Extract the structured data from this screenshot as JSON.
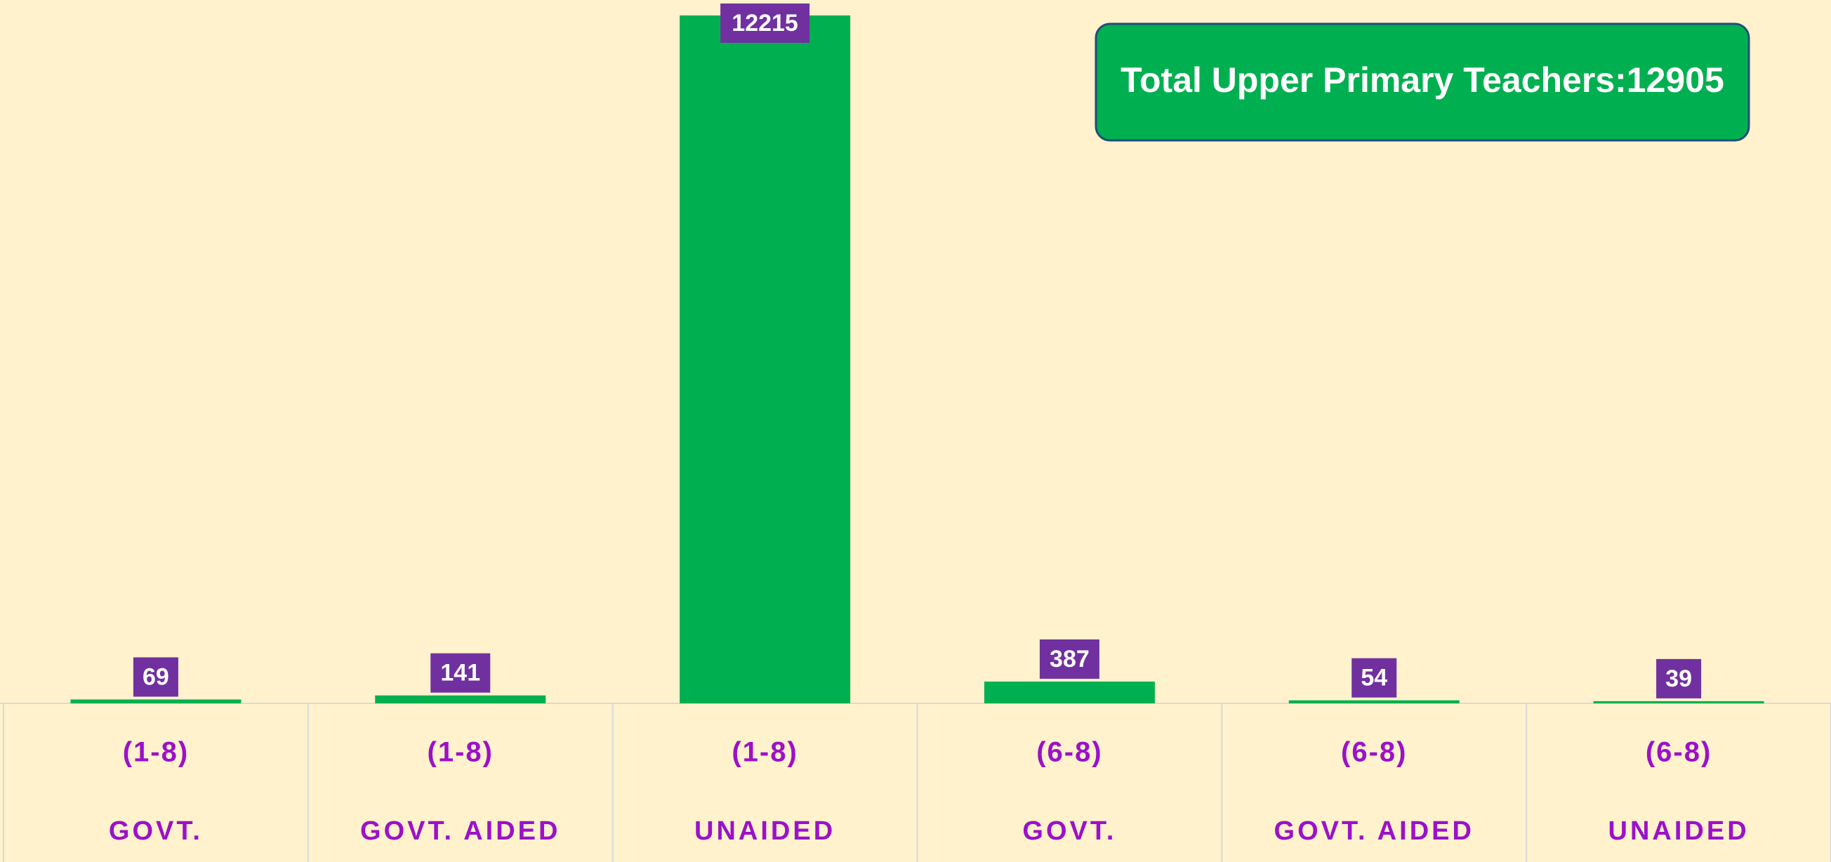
{
  "chart_data": {
    "type": "bar",
    "title": "Total Upper Primary Teachers:12905",
    "categories": [
      [
        "(1-8)",
        "GOVT."
      ],
      [
        "(1-8)",
        "GOVT. AIDED"
      ],
      [
        "(1-8)",
        "UNAIDED"
      ],
      [
        "(6-8)",
        "GOVT."
      ],
      [
        "(6-8)",
        "GOVT. AIDED"
      ],
      [
        "(6-8)",
        "UNAIDED"
      ]
    ],
    "values": [
      69,
      141,
      12215,
      387,
      54,
      39
    ],
    "color": "#00b050",
    "label_color": "#7030a0",
    "grid": false
  }
}
